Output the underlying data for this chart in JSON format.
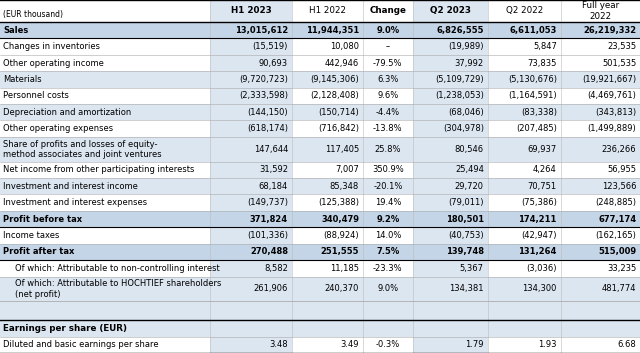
{
  "unit_label": "(EUR thousand)",
  "columns": [
    "H1 2023",
    "H1 2022",
    "Change",
    "Q2 2023",
    "Q2 2022",
    "Full year\n2022"
  ],
  "col_header_bold": [
    true,
    false,
    true,
    true,
    false,
    false
  ],
  "rows": [
    {
      "label": "Sales",
      "values": [
        "13,015,612",
        "11,944,351",
        "9.0%",
        "6,826,555",
        "6,611,053",
        "26,219,332"
      ],
      "bold": true,
      "indent": 0,
      "bg": "bold"
    },
    {
      "label": "Changes in inventories",
      "values": [
        "(15,519)",
        "10,080",
        "–",
        "(19,989)",
        "5,847",
        "23,535"
      ],
      "bold": false,
      "indent": 0,
      "bg": "white"
    },
    {
      "label": "Other operating income",
      "values": [
        "90,693",
        "442,946",
        "-79.5%",
        "37,992",
        "73,835",
        "501,535"
      ],
      "bold": false,
      "indent": 0,
      "bg": "white"
    },
    {
      "label": "Materials",
      "values": [
        "(9,720,723)",
        "(9,145,306)",
        "6.3%",
        "(5,109,729)",
        "(5,130,676)",
        "(19,921,667)"
      ],
      "bold": false,
      "indent": 0,
      "bg": "blue"
    },
    {
      "label": "Personnel costs",
      "values": [
        "(2,333,598)",
        "(2,128,408)",
        "9.6%",
        "(1,238,053)",
        "(1,164,591)",
        "(4,469,761)"
      ],
      "bold": false,
      "indent": 0,
      "bg": "white"
    },
    {
      "label": "Depreciation and amortization",
      "values": [
        "(144,150)",
        "(150,714)",
        "-4.4%",
        "(68,046)",
        "(83,338)",
        "(343,813)"
      ],
      "bold": false,
      "indent": 0,
      "bg": "blue"
    },
    {
      "label": "Other operating expenses",
      "values": [
        "(618,174)",
        "(716,842)",
        "-13.8%",
        "(304,978)",
        "(207,485)",
        "(1,499,889)"
      ],
      "bold": false,
      "indent": 0,
      "bg": "white"
    },
    {
      "label": "Share of profits and losses of equity-\nmethod associates and joint ventures",
      "values": [
        "147,644",
        "117,405",
        "25.8%",
        "80,546",
        "69,937",
        "236,266"
      ],
      "bold": false,
      "indent": 0,
      "bg": "blue",
      "multiline": true
    },
    {
      "label": "Net income from other participating interests",
      "values": [
        "31,592",
        "7,007",
        "350.9%",
        "25,494",
        "4,264",
        "56,955"
      ],
      "bold": false,
      "indent": 0,
      "bg": "white"
    },
    {
      "label": "Investment and interest income",
      "values": [
        "68,184",
        "85,348",
        "-20.1%",
        "29,720",
        "70,751",
        "123,566"
      ],
      "bold": false,
      "indent": 0,
      "bg": "blue"
    },
    {
      "label": "Investment and interest expenses",
      "values": [
        "(149,737)",
        "(125,388)",
        "19.4%",
        "(79,011)",
        "(75,386)",
        "(248,885)"
      ],
      "bold": false,
      "indent": 0,
      "bg": "white"
    },
    {
      "label": "Profit before tax",
      "values": [
        "371,824",
        "340,479",
        "9.2%",
        "180,501",
        "174,211",
        "677,174"
      ],
      "bold": true,
      "indent": 0,
      "bg": "bold"
    },
    {
      "label": "Income taxes",
      "values": [
        "(101,336)",
        "(88,924)",
        "14.0%",
        "(40,753)",
        "(42,947)",
        "(162,165)"
      ],
      "bold": false,
      "indent": 0,
      "bg": "white"
    },
    {
      "label": "Profit after tax",
      "values": [
        "270,488",
        "251,555",
        "7.5%",
        "139,748",
        "131,264",
        "515,009"
      ],
      "bold": true,
      "indent": 0,
      "bg": "bold"
    },
    {
      "label": "Of which: Attributable to non-controlling interest",
      "values": [
        "8,582",
        "11,185",
        "-23.3%",
        "5,367",
        "(3,036)",
        "33,235"
      ],
      "bold": false,
      "indent": 1,
      "bg": "white"
    },
    {
      "label": "Of which: Attributable to HOCHTIEF shareholders\n(net profit)",
      "values": [
        "261,906",
        "240,370",
        "9.0%",
        "134,381",
        "134,300",
        "481,774"
      ],
      "bold": false,
      "indent": 1,
      "bg": "blue",
      "multiline": true
    }
  ],
  "eps_section_label": "Earnings per share (EUR)",
  "eps_row": {
    "label": "Diluted and basic earnings per share",
    "values": [
      "3.48",
      "3.49",
      "-0.3%",
      "1.79",
      "1.93",
      "6.68"
    ]
  },
  "colors": {
    "bold_bg": "#c5d5e8",
    "blue_bg": "#dce6f1",
    "white_bg": "#ffffff",
    "h1_col_bg": "#dce6f1",
    "q2_col_bg": "#dce6f1"
  },
  "figsize": [
    6.4,
    3.53
  ],
  "dpi": 100
}
